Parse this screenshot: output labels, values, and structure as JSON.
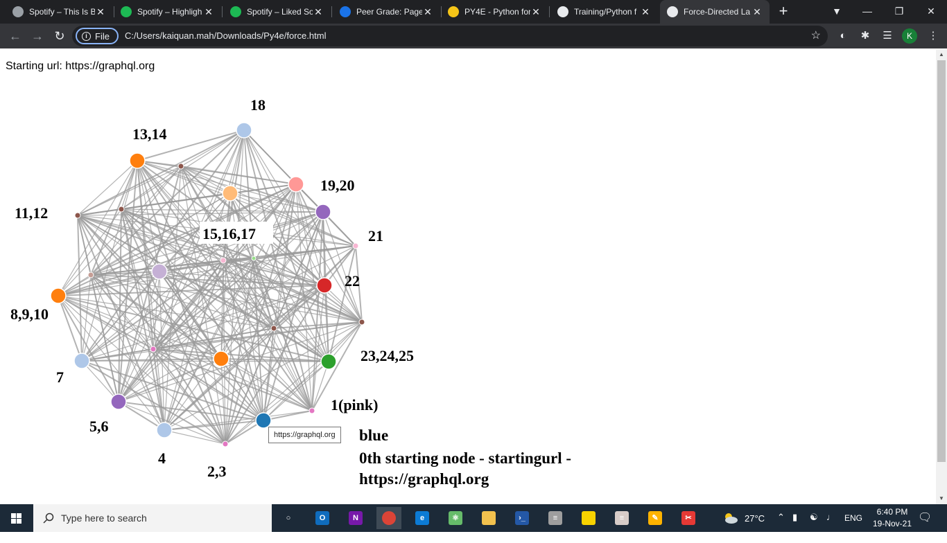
{
  "browser": {
    "tabs": [
      {
        "title": "Spotify – This Is B",
        "icon": "spinner-icon",
        "color": "#9aa0a6"
      },
      {
        "title": "Spotify – Highligh",
        "icon": "spotify-icon",
        "color": "#1db954"
      },
      {
        "title": "Spotify – Liked So",
        "icon": "spotify-icon",
        "color": "#1db954"
      },
      {
        "title": "Peer Grade: Page",
        "icon": "coursera-icon",
        "color": "#1a73e8"
      },
      {
        "title": "PY4E - Python for",
        "icon": "python-icon",
        "color": "#f5c518"
      },
      {
        "title": "Training/Python f",
        "icon": "github-icon",
        "color": "#e8eaed"
      },
      {
        "title": "Force-Directed La",
        "icon": "globe-icon",
        "color": "#e8eaed",
        "active": true
      }
    ],
    "site_chip": "File",
    "url": "C:/Users/kaiquan.mah/Downloads/Py4e/force.html",
    "profile_initial": "K"
  },
  "page": {
    "starting_url_line": "Starting url: https://graphql.org",
    "tooltip": "https://graphql.org",
    "legend_lines": [
      "blue",
      "0th starting node - startingurl -",
      "https://graphql.org"
    ]
  },
  "graph": {
    "nodes": [
      {
        "label": "18",
        "color": "#aec7e8",
        "r": 11
      },
      {
        "label": "",
        "color": "#8c564b",
        "r": 4
      },
      {
        "label": "13,14",
        "color": "#ff7f0e",
        "r": 11
      },
      {
        "label": "",
        "color": "#ffbb78",
        "r": 11
      },
      {
        "label": "",
        "color": "#8c564b",
        "r": 4
      },
      {
        "label": "19,20",
        "color": "#ff9896",
        "r": 11
      },
      {
        "label": "11,12",
        "color": "#9467bd",
        "r": 11
      },
      {
        "label": "",
        "color": "#8c564b",
        "r": 4
      },
      {
        "label": "21",
        "color": "#f7b6d2",
        "r": 4
      },
      {
        "label": "15,16,17",
        "color": "#f7b6d2",
        "r": 4
      },
      {
        "label": "",
        "color": "#98df8a",
        "r": 3
      },
      {
        "label": "",
        "color": "#c49c94",
        "r": 4
      },
      {
        "label": "",
        "color": "#c5b0d5",
        "r": 11
      },
      {
        "label": "8,9,10",
        "color": "#ff7f0e",
        "r": 11
      },
      {
        "label": "22",
        "color": "#d62728",
        "r": 11
      },
      {
        "label": "",
        "color": "#8c564b",
        "r": 4
      },
      {
        "label": "",
        "color": "#8c564b",
        "r": 4
      },
      {
        "label": "",
        "color": "#e377c2",
        "r": 4
      },
      {
        "label": "7",
        "color": "#aec7e8",
        "r": 11
      },
      {
        "label": "",
        "color": "#ff7f0e",
        "r": 11
      },
      {
        "label": "23,24,25",
        "color": "#2ca02c",
        "r": 11
      },
      {
        "label": "1(pink)",
        "color": "#e377c2",
        "r": 4
      },
      {
        "label": "5,6",
        "color": "#9467bd",
        "r": 11
      },
      {
        "label": "",
        "color": "#1f77b4",
        "r": 11
      },
      {
        "label": "4",
        "color": "#aec7e8",
        "r": 11
      },
      {
        "label": "2,3",
        "color": "#e377c2",
        "r": 4
      }
    ],
    "link_color": "#999999",
    "node_stroke": "#ffffff"
  },
  "taskbar": {
    "search_placeholder": "Type here to search",
    "apps": [
      {
        "name": "task-view",
        "color": "#1c2a38",
        "text": "○"
      },
      {
        "name": "outlook",
        "color": "#0f6cbd",
        "text": "O"
      },
      {
        "name": "onenote",
        "color": "#7719aa",
        "text": "N"
      },
      {
        "name": "chrome",
        "color": "#db4437",
        "text": "",
        "active": true
      },
      {
        "name": "edge",
        "color": "#0c7bd5",
        "text": "e"
      },
      {
        "name": "atom",
        "color": "#66bb6a",
        "text": "⚛"
      },
      {
        "name": "file-explorer",
        "color": "#f2c14e",
        "text": ""
      },
      {
        "name": "powershell",
        "color": "#2458a6",
        "text": "›_"
      },
      {
        "name": "database",
        "color": "#9e9e9e",
        "text": "≡"
      },
      {
        "name": "sticky-notes",
        "color": "#f7d200",
        "text": ""
      },
      {
        "name": "notepad",
        "color": "#d7ccc8",
        "text": "≡"
      },
      {
        "name": "paint",
        "color": "#ffb300",
        "text": "✎"
      },
      {
        "name": "snip",
        "color": "#e53935",
        "text": "✂"
      }
    ],
    "weather": "27°C",
    "language": "ENG",
    "time": "6:40 PM",
    "date": "19-Nov-21"
  }
}
